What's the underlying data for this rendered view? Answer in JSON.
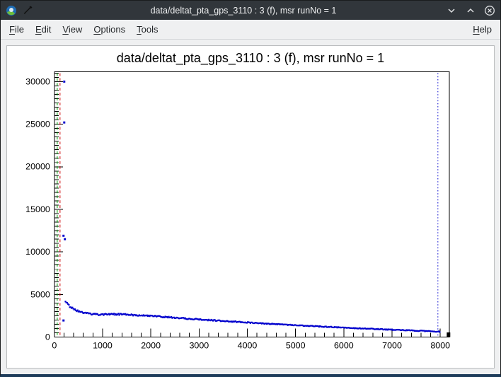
{
  "window": {
    "title": "data/deltat_pta_gps_3110 : 3 (f), msr runNo = 1",
    "icons": {
      "app_logo": "root-logo",
      "tool": "wrench",
      "minimize": "chevron-down",
      "maximize": "chevron-up",
      "close": "circle-x"
    }
  },
  "menubar": {
    "items": [
      "File",
      "Edit",
      "View",
      "Options",
      "Tools"
    ],
    "right_items": [
      "Help"
    ]
  },
  "chart_data": {
    "type": "scatter",
    "title": "data/deltat_pta_gps_3110 : 3 (f), msr runNo = 1",
    "xlabel": "",
    "ylabel": "",
    "xlim": [
      0,
      8190
    ],
    "ylim": [
      0,
      31150
    ],
    "x_major_step": 1000,
    "x_minor_step": 200,
    "y_major_step": 5000,
    "y_minor_step": 500,
    "x_tick_labels": [
      0,
      1000,
      2000,
      3000,
      4000,
      5000,
      6000,
      7000,
      8000
    ],
    "y_tick_labels": [
      0,
      5000,
      10000,
      15000,
      20000,
      25000,
      30000
    ],
    "grid": false,
    "legend": false,
    "marker_color": "#0000cd",
    "series": {
      "name": "deltat_pta_gps_3110 histogram",
      "keypoints": [
        [
          230,
          4250
        ],
        [
          260,
          4050
        ],
        [
          290,
          3820
        ],
        [
          320,
          3600
        ],
        [
          360,
          3420
        ],
        [
          400,
          3280
        ],
        [
          450,
          3140
        ],
        [
          500,
          3020
        ],
        [
          560,
          2920
        ],
        [
          620,
          2840
        ],
        [
          700,
          2760
        ],
        [
          800,
          2690
        ],
        [
          900,
          2650
        ],
        [
          1000,
          2655
        ],
        [
          1100,
          2680
        ],
        [
          1200,
          2695
        ],
        [
          1300,
          2685
        ],
        [
          1400,
          2665
        ],
        [
          1500,
          2640
        ],
        [
          1600,
          2610
        ],
        [
          1800,
          2545
        ],
        [
          2000,
          2470
        ],
        [
          2200,
          2395
        ],
        [
          2400,
          2315
        ],
        [
          2600,
          2235
        ],
        [
          2800,
          2155
        ],
        [
          3000,
          2075
        ],
        [
          3200,
          2000
        ],
        [
          3400,
          1930
        ],
        [
          3600,
          1860
        ],
        [
          3800,
          1790
        ],
        [
          4000,
          1720
        ],
        [
          4200,
          1650
        ],
        [
          4400,
          1585
        ],
        [
          4600,
          1520
        ],
        [
          4800,
          1455
        ],
        [
          5000,
          1395
        ],
        [
          5200,
          1335
        ],
        [
          5400,
          1275
        ],
        [
          5600,
          1220
        ],
        [
          5800,
          1165
        ],
        [
          6000,
          1110
        ],
        [
          6200,
          1060
        ],
        [
          6400,
          1010
        ],
        [
          6600,
          960
        ],
        [
          6800,
          915
        ],
        [
          7000,
          865
        ],
        [
          7200,
          820
        ],
        [
          7400,
          775
        ],
        [
          7600,
          730
        ],
        [
          7800,
          680
        ],
        [
          8000,
          630
        ]
      ]
    },
    "outliers": [
      [
        205,
        30000
      ],
      [
        205,
        25200
      ],
      [
        190,
        11900
      ],
      [
        218,
        11500
      ],
      [
        190,
        1950
      ]
    ],
    "vlines": [
      {
        "name": "t0-line",
        "x": 60,
        "color": "#00a000",
        "style": "dashed"
      },
      {
        "name": "bkg-line",
        "x": 118,
        "color": "#cc0000",
        "style": "dashed"
      },
      {
        "name": "data-end-line",
        "x": 7950,
        "color": "#0000cd",
        "style": "dotted"
      }
    ],
    "overflow_marker": {
      "x": 8170,
      "y": 550,
      "color": "#000000"
    }
  }
}
